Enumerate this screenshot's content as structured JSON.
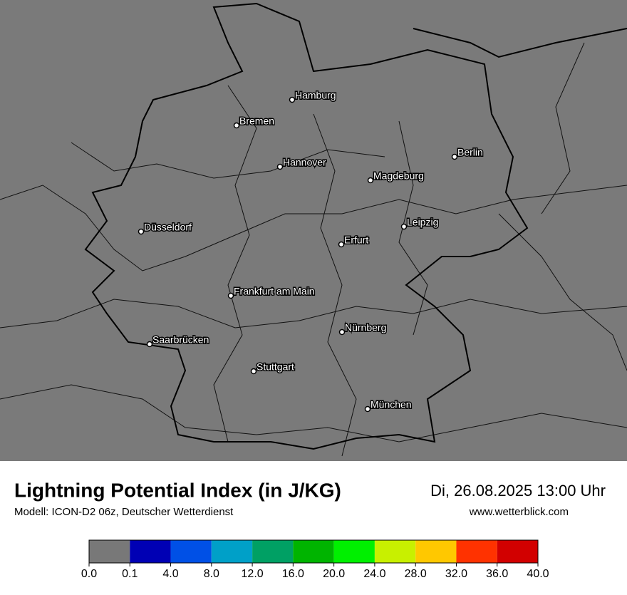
{
  "map": {
    "cities": [
      "Hamburg",
      "Bremen",
      "Berlin",
      "Hannover",
      "Magdeburg",
      "Düsseldorf",
      "Leipzig",
      "Erfurt",
      "Frankfurt am Main",
      "Nürnberg",
      "Saarbrücken",
      "Stuttgart",
      "München"
    ]
  },
  "footer": {
    "title": "Lightning Potential Index (in J/KG)",
    "subtitle": "Modell: ICON-D2 06z, Deutscher Wetterdienst",
    "date": "Di, 26.08.2025 13:00 Uhr",
    "website": "www.wetterblick.com"
  },
  "legend": {
    "colors": [
      "#787878",
      "#0000b4",
      "#0050e6",
      "#00a0c8",
      "#00a064",
      "#00b400",
      "#00f000",
      "#c8f000",
      "#ffc800",
      "#ff3200",
      "#d20000"
    ],
    "ticks": [
      {
        "value": 0,
        "label": "0.0"
      },
      0.1,
      {
        "value": 4,
        "label": "4.0"
      },
      {
        "value": 8,
        "label": "8.0"
      },
      {
        "value": 12,
        "label": "12.0"
      },
      {
        "value": 16,
        "label": "16.0"
      },
      {
        "value": 20,
        "label": "20.0"
      },
      {
        "value": 24,
        "label": "24.0"
      },
      {
        "value": 28,
        "label": "28.0"
      },
      {
        "value": 32,
        "label": "32.0"
      },
      {
        "value": 36,
        "label": "36.0"
      },
      {
        "value": 40,
        "label": "40.0"
      }
    ]
  }
}
